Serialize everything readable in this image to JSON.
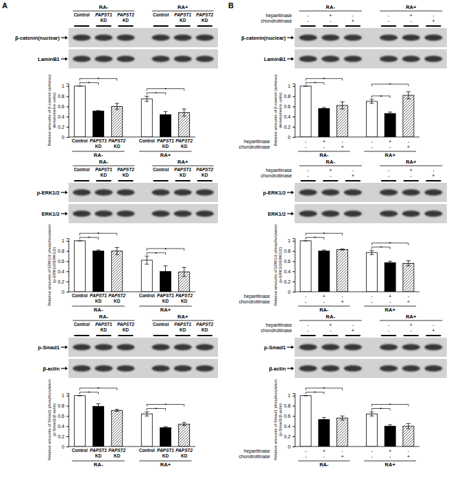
{
  "panel_labels": [
    "A",
    "B"
  ],
  "chart_data": [
    {
      "type": "bar",
      "blot": [
        "β-catenin(nuclear)",
        "LaminB1"
      ],
      "groups": [
        "RA-",
        "RA+"
      ],
      "categories": [
        "Control",
        "PAPST1 KD",
        "PAPST2 KD",
        "Control",
        "PAPST1 KD",
        "PAPST2 KD"
      ],
      "y_label": [
        "Relative amounts of β-catenin (arbitrary",
        "densitometric units)"
      ],
      "values": [
        1,
        0.51,
        0.6,
        0.75,
        0.44,
        0.48
      ],
      "errors": [
        0,
        0.01,
        0.06,
        0.05,
        0.06,
        0.07
      ],
      "colors": [
        "#ffffff",
        "#000000",
        "#555555",
        "#ffffff",
        "#000000",
        "#555555"
      ],
      "ylim": [
        0,
        1.05
      ],
      "yticks": [
        0,
        0.2,
        0.4,
        0.6,
        0.8,
        1
      ],
      "significance": [
        {
          "from": 0,
          "to": 1,
          "label": "*"
        },
        {
          "from": 0,
          "to": 2,
          "label": "*"
        },
        {
          "from": 3,
          "to": 4,
          "label": "*"
        },
        {
          "from": 3,
          "to": 5,
          "label": "*"
        }
      ]
    },
    {
      "type": "bar",
      "blot": [
        "p-ERK1/2",
        "ERK1/2"
      ],
      "groups": [
        "RA-",
        "RA+"
      ],
      "categories": [
        "Control",
        "PAPST1 KD",
        "PAPST2 KD",
        "Control",
        "PAPST1 KD",
        "PAPST2 KD"
      ],
      "y_label": [
        "Relative amounts of ERK1/2 phosphorylation",
        "(p-ERK1/2/ERK1/2)"
      ],
      "values": [
        1,
        0.8,
        0.8,
        0.62,
        0.4,
        0.39
      ],
      "errors": [
        0,
        0.02,
        0.07,
        0.08,
        0.11,
        0.09
      ],
      "colors": [
        "#ffffff",
        "#000000",
        "#555555",
        "#ffffff",
        "#000000",
        "#555555"
      ],
      "ylim": [
        0,
        1.05
      ],
      "yticks": [
        0,
        0.2,
        0.4,
        0.6,
        0.8,
        1
      ],
      "significance": [
        {
          "from": 0,
          "to": 1,
          "label": "*"
        },
        {
          "from": 0,
          "to": 2,
          "label": "*"
        },
        {
          "from": 3,
          "to": 4,
          "label": "*"
        },
        {
          "from": 3,
          "to": 5,
          "label": "*"
        }
      ]
    },
    {
      "type": "bar",
      "blot": [
        "p-Smad1",
        "β-actin"
      ],
      "groups": [
        "RA-",
        "RA+"
      ],
      "categories": [
        "Control",
        "PAPST1 KD",
        "PAPST2 KD",
        "Control",
        "PAPST1 KD",
        "PAPST2 KD"
      ],
      "y_label": [
        "Relative amounts of Smad1 phosphorylation",
        "(p-Smad1/β-actin)"
      ],
      "values": [
        1,
        0.79,
        0.71,
        0.64,
        0.37,
        0.44
      ],
      "errors": [
        0,
        0.05,
        0.02,
        0.04,
        0.02,
        0.03
      ],
      "colors": [
        "#ffffff",
        "#000000",
        "#555555",
        "#ffffff",
        "#000000",
        "#555555"
      ],
      "ylim": [
        0,
        1.05
      ],
      "yticks": [
        0,
        0.2,
        0.4,
        0.6,
        0.8,
        1
      ],
      "significance": [
        {
          "from": 0,
          "to": 1,
          "label": "*"
        },
        {
          "from": 0,
          "to": 2,
          "label": "*"
        },
        {
          "from": 3,
          "to": 4,
          "label": "*"
        },
        {
          "from": 3,
          "to": 5,
          "label": "*"
        }
      ]
    },
    {
      "type": "bar",
      "blot": [
        "β-catenin(nuclear)",
        "LaminB1"
      ],
      "groups": [
        "RA-",
        "RA+"
      ],
      "categories": [
        null,
        null,
        null,
        null,
        null,
        null
      ],
      "treatments": [
        {
          "name": "heparitinase",
          "values": [
            "-",
            "+",
            "-",
            "-",
            "+",
            "-"
          ]
        },
        {
          "name": "chondroitinase",
          "values": [
            "-",
            "-",
            "+",
            "-",
            "-",
            "+"
          ]
        }
      ],
      "y_label": [
        "Relative amounts of β-catenin (arbitrary",
        "densitometric units)"
      ],
      "values": [
        1,
        0.56,
        0.62,
        0.7,
        0.46,
        0.82
      ],
      "errors": [
        0,
        0.02,
        0.07,
        0.04,
        0.03,
        0.07
      ],
      "colors": [
        "#ffffff",
        "#000000",
        "#555555",
        "#ffffff",
        "#000000",
        "#555555"
      ],
      "ylim": [
        0,
        1.05
      ],
      "yticks": [
        0,
        0.2,
        0.4,
        0.6,
        0.8,
        1
      ],
      "significance": [
        {
          "from": 0,
          "to": 1,
          "label": "*"
        },
        {
          "from": 0,
          "to": 2,
          "label": "*"
        },
        {
          "from": 3,
          "to": 4,
          "label": "*"
        },
        {
          "from": 3,
          "to": 5,
          "label": "*"
        }
      ]
    },
    {
      "type": "bar",
      "blot": [
        "p-ERK1/2",
        "ERK1/2"
      ],
      "groups": [
        "RA-",
        "RA+"
      ],
      "categories": [
        null,
        null,
        null,
        null,
        null,
        null
      ],
      "treatments": [
        {
          "name": "heparitinase",
          "values": [
            "-",
            "+",
            "-",
            "-",
            "+",
            "-"
          ]
        },
        {
          "name": "chondroitinase",
          "values": [
            "-",
            "-",
            "+",
            "-",
            "-",
            "+"
          ]
        }
      ],
      "y_label": [
        "Relative amounts of ERK1/2 phosphorylation",
        "(p-ERK1/2/ERK1/2)"
      ],
      "values": [
        1,
        0.8,
        0.83,
        0.77,
        0.57,
        0.56
      ],
      "errors": [
        0,
        0.02,
        0.01,
        0.04,
        0.03,
        0.05
      ],
      "colors": [
        "#ffffff",
        "#000000",
        "#555555",
        "#ffffff",
        "#000000",
        "#555555"
      ],
      "ylim": [
        0,
        1.05
      ],
      "yticks": [
        0,
        0.2,
        0.4,
        0.6,
        0.8,
        1
      ],
      "significance": [
        {
          "from": 0,
          "to": 1,
          "label": "*"
        },
        {
          "from": 0,
          "to": 2,
          "label": "*"
        },
        {
          "from": 3,
          "to": 4,
          "label": "*"
        },
        {
          "from": 3,
          "to": 5,
          "label": "*"
        }
      ]
    },
    {
      "type": "bar",
      "blot": [
        "p-Smad1",
        "β-actin"
      ],
      "groups": [
        "RA-",
        "RA+"
      ],
      "categories": [
        null,
        null,
        null,
        null,
        null,
        null
      ],
      "treatments": [
        {
          "name": "heparitinase",
          "values": [
            "-",
            "+",
            "-",
            "-",
            "+",
            "-"
          ]
        },
        {
          "name": "chondroitinase",
          "values": [
            "-",
            "-",
            "+",
            "-",
            "-",
            "+"
          ]
        }
      ],
      "y_label": [
        "Relative amounts of Smad1 phosphorylation",
        "(p-Smad1/β-actin)"
      ],
      "values": [
        1,
        0.53,
        0.56,
        0.64,
        0.4,
        0.4
      ],
      "errors": [
        0,
        0.04,
        0.04,
        0.04,
        0.03,
        0.05
      ],
      "colors": [
        "#ffffff",
        "#000000",
        "#555555",
        "#ffffff",
        "#000000",
        "#555555"
      ],
      "ylim": [
        0,
        1.05
      ],
      "yticks": [
        0,
        0.2,
        0.4,
        0.6,
        0.8,
        1
      ],
      "significance": [
        {
          "from": 0,
          "to": 1,
          "label": "*"
        },
        {
          "from": 0,
          "to": 2,
          "label": "*"
        },
        {
          "from": 3,
          "to": 4,
          "label": "*"
        },
        {
          "from": 3,
          "to": 5,
          "label": "*"
        }
      ]
    }
  ]
}
